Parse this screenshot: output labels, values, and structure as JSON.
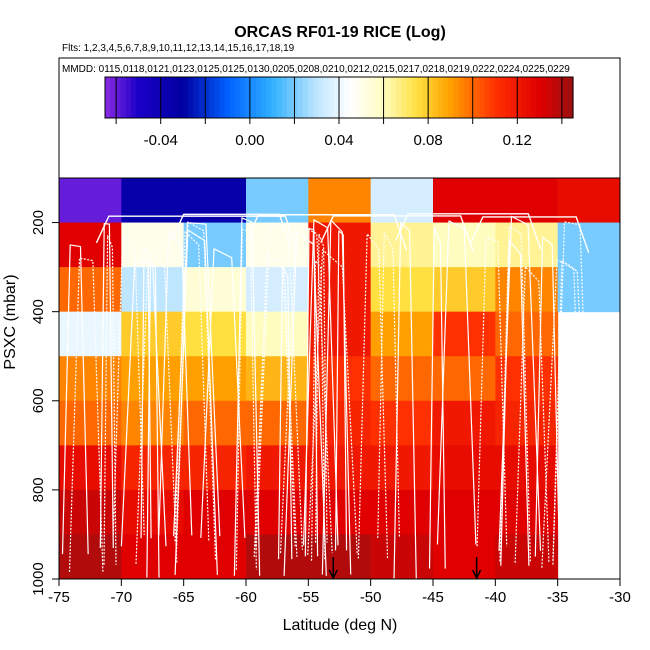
{
  "chart_data": {
    "type": "heatmap",
    "title": "ORCAS RF01-19 RICE (Log)",
    "flights_label": "Flts: 1,2,3,4,5,6,7,8,9,10,11,12,13,14,15,16,17,18,19",
    "dates_label": "MMDD: 0115,0118,0121,0123,0125,0125,0130,0205,0208,0210,0212,0215,0217,0218,0219,0222,0224,0225,0229",
    "xlabel": "Latitude (deg N)",
    "ylabel": "PSXC (mbar)",
    "xlim": [
      -75,
      -30
    ],
    "ylim": [
      100,
      1000
    ],
    "x_ticks": [
      -75,
      -70,
      -65,
      -60,
      -55,
      -50,
      -45,
      -40,
      -35,
      -30
    ],
    "x_tick_labels": [
      "-75",
      "-70",
      "-65",
      "-60",
      "-55",
      "-50",
      "-45",
      "-40",
      "-35",
      "-30"
    ],
    "y_ticks": [
      200,
      400,
      600,
      800,
      1000
    ],
    "y_tick_labels": [
      "200",
      "400",
      "600",
      "800",
      "1000"
    ],
    "colorbar": {
      "min": -0.065,
      "max": 0.145,
      "ticks": [
        -0.04,
        0.0,
        0.04,
        0.08,
        0.12
      ],
      "tick_labels": [
        "-0.04",
        "0.00",
        "0.04",
        "0.08",
        "0.12"
      ],
      "major_ticks": [
        -0.06,
        -0.04,
        -0.02,
        0.0,
        0.02,
        0.04,
        0.06,
        0.08,
        0.1,
        0.12,
        0.14
      ],
      "stops": [
        {
          "v": -0.065,
          "c": "#8a2be2"
        },
        {
          "v": -0.05,
          "c": "#1a00c8"
        },
        {
          "v": -0.03,
          "c": "#0000a0"
        },
        {
          "v": -0.01,
          "c": "#0060ff"
        },
        {
          "v": 0.01,
          "c": "#30b0ff"
        },
        {
          "v": 0.03,
          "c": "#bfe6ff"
        },
        {
          "v": 0.045,
          "c": "#ffffff"
        },
        {
          "v": 0.06,
          "c": "#fffcc0"
        },
        {
          "v": 0.075,
          "c": "#ffe040"
        },
        {
          "v": 0.09,
          "c": "#ffa000"
        },
        {
          "v": 0.11,
          "c": "#ff3000"
        },
        {
          "v": 0.13,
          "c": "#e00000"
        },
        {
          "v": 0.145,
          "c": "#9a1010"
        }
      ]
    },
    "lat_bins": [
      -75,
      -70,
      -65,
      -60,
      -55,
      -50,
      -45,
      -40,
      -35,
      -30
    ],
    "p_bins": [
      100,
      200,
      300,
      400,
      500,
      600,
      700,
      800,
      900,
      1000
    ],
    "cells": [
      [
        -0.06,
        -0.035,
        -0.035,
        0.02,
        0.095,
        0.035,
        0.13,
        0.13,
        0.125
      ],
      [
        0.13,
        0.05,
        0.02,
        0.05,
        0.12,
        0.065,
        0.06,
        0.065,
        0.02
      ],
      [
        0.1,
        0.03,
        0.055,
        0.035,
        0.12,
        0.075,
        0.08,
        0.095,
        0.02
      ],
      [
        0.04,
        0.08,
        0.075,
        0.06,
        0.12,
        0.09,
        0.11,
        0.1,
        null
      ],
      [
        0.095,
        0.09,
        0.09,
        0.085,
        0.11,
        0.1,
        0.1,
        0.11,
        null
      ],
      [
        0.1,
        0.095,
        0.1,
        0.1,
        0.115,
        0.11,
        0.12,
        0.115,
        null
      ],
      [
        0.125,
        0.115,
        0.115,
        0.12,
        0.12,
        0.12,
        0.125,
        0.125,
        null
      ],
      [
        0.135,
        0.125,
        0.13,
        0.13,
        0.13,
        0.13,
        0.13,
        0.13,
        null
      ],
      [
        0.14,
        0.13,
        0.13,
        0.14,
        0.14,
        0.135,
        0.13,
        0.135,
        null
      ]
    ],
    "markers": [
      {
        "lat": -53,
        "p": 1000,
        "label": "arrow"
      },
      {
        "lat": -41.5,
        "p": 1000,
        "label": "arrow"
      }
    ],
    "track_color": "#ffffff"
  }
}
